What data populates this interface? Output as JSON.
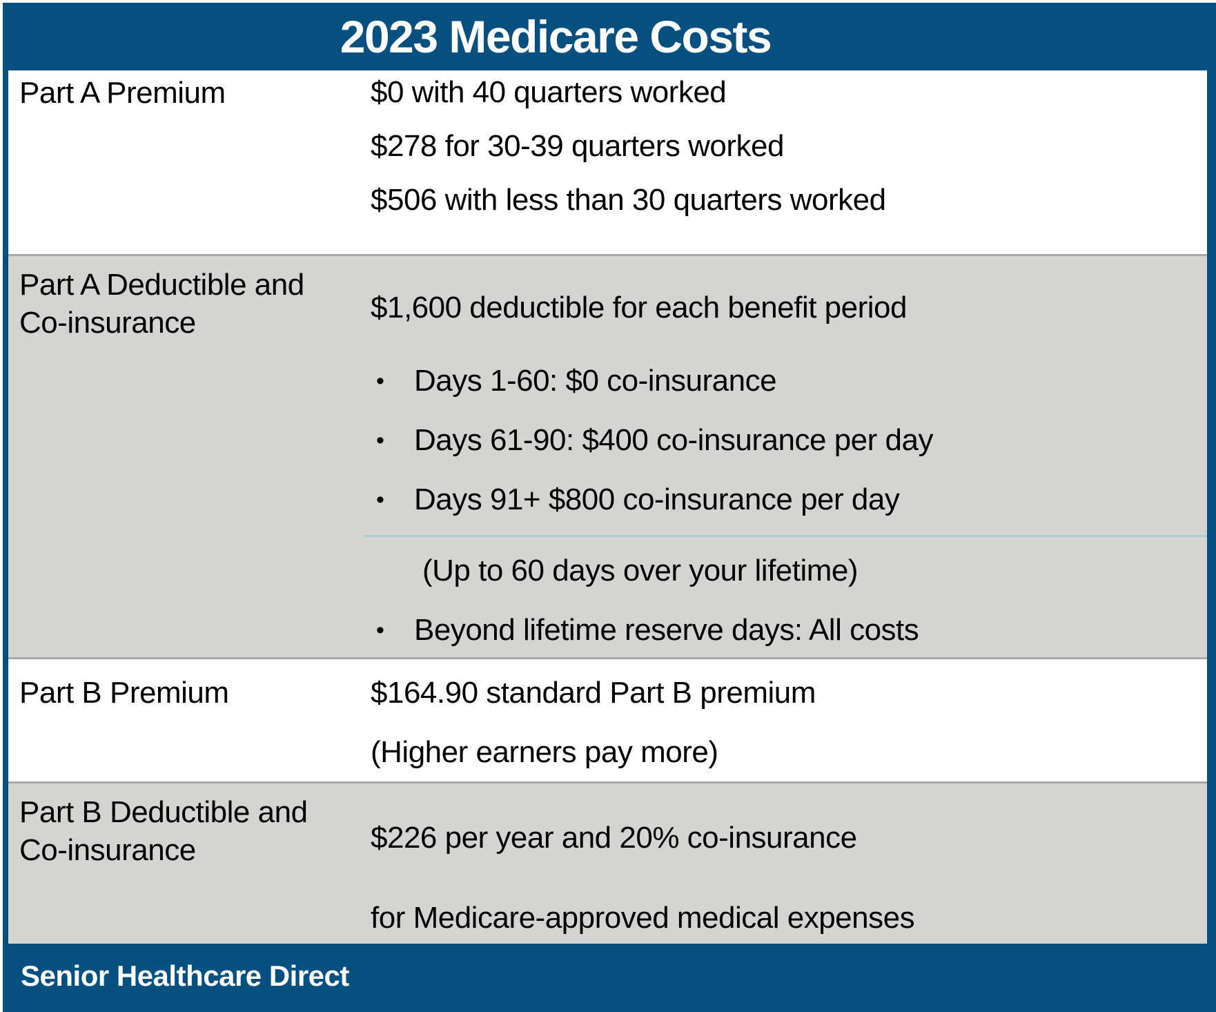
{
  "title": "2023 Medicare Costs",
  "colors": {
    "header_blue": "#06507F",
    "row_gray": "#D4D4D3",
    "row_divider_gray": "#A8A8A8",
    "note_divider_blue": "#A9CBDC",
    "title_text": "#FFFFFF",
    "body_text": "#000000"
  },
  "icons": {
    "bullet": "•"
  },
  "table": {
    "rows": [
      {
        "label_lines": [
          "Part A Premium"
        ],
        "value_lines": [
          "$0 with 40 quarters worked",
          "$278 for 30-39 quarters worked",
          "$506 with less than 30 quarters worked"
        ]
      },
      {
        "label_lines": [
          "Part A Deductible and",
          "Co-insurance"
        ],
        "intro": "$1,600 deductible for each benefit period",
        "bullets": [
          "Days 1-60: $0 co-insurance",
          "Days 61-90: $400 co-insurance per day",
          "Days 91+ $800 co-insurance per day"
        ],
        "note": "(Up to 60 days over your lifetime)",
        "bullets_after": [
          "Beyond lifetime reserve days: All costs"
        ]
      },
      {
        "label_lines": [
          "Part B Premium"
        ],
        "value_lines": [
          "$164.90 standard Part B premium",
          "(Higher earners pay more)"
        ]
      },
      {
        "label_lines": [
          "Part B Deductible and",
          "Co-insurance"
        ],
        "value_lines": [
          "$226 per year and 20% co-insurance",
          "for Medicare-approved medical expenses"
        ]
      }
    ]
  },
  "footer": {
    "brand": "Senior Healthcare Direct"
  }
}
